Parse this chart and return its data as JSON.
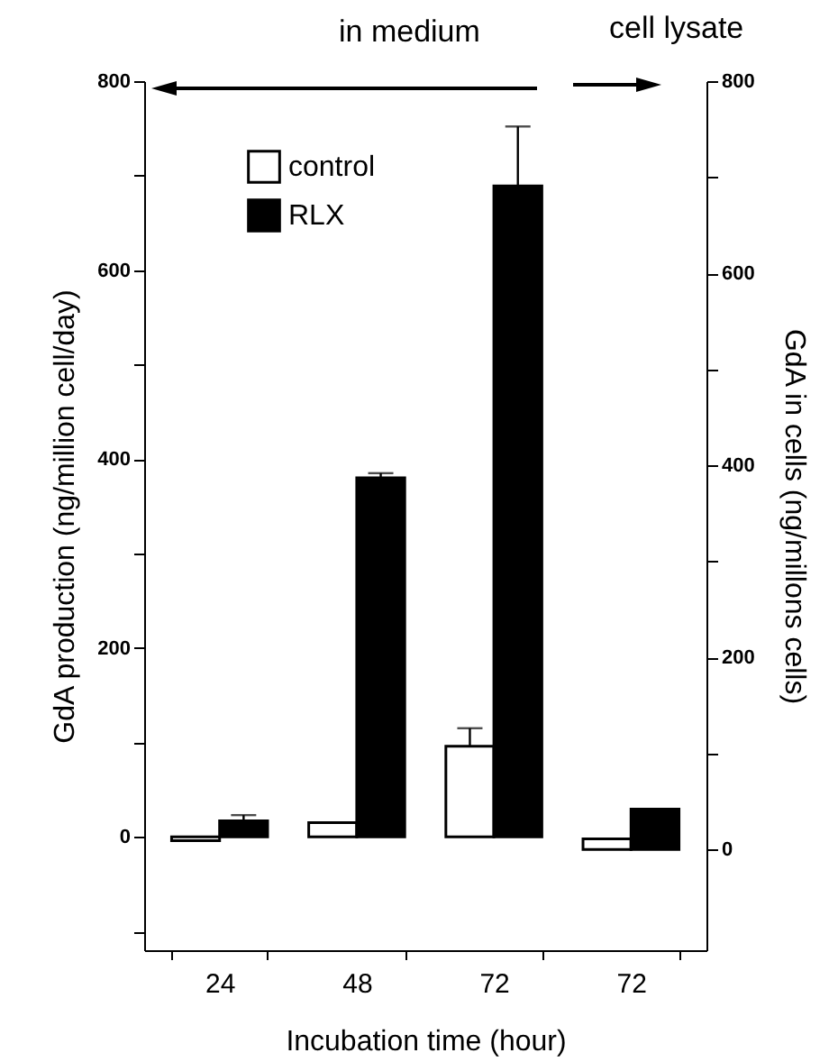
{
  "chart_data": {
    "type": "bar",
    "xlabel": "Incubation time (hour)",
    "ylabel": "GdA production (ng/million cell/day)",
    "y2label": "GdA in cells (ng/millons cells)",
    "annotations": [
      "in medium",
      "cell lysate"
    ],
    "categories": [
      "24",
      "48",
      "72",
      "72"
    ],
    "series": [
      {
        "name": "control",
        "color": "#ffffff",
        "values": [
          -4,
          15,
          96,
          null
        ],
        "errors": [
          null,
          null,
          [
            96,
            115
          ],
          null
        ]
      },
      {
        "name": "RLX",
        "color": "#000000",
        "values": [
          17,
          380,
          689,
          null
        ],
        "errors": [
          [
            17,
            23
          ],
          [
            380,
            385
          ],
          [
            689,
            752
          ],
          null
        ]
      },
      {
        "color": "#ffffff",
        "axis": "y2",
        "values": [
          null,
          null,
          null,
          11
        ]
      },
      {
        "color": "#000000",
        "axis": "y2",
        "values": [
          null,
          null,
          null,
          42
        ]
      }
    ],
    "ylim": [
      -120,
      800
    ],
    "yticks": [
      {
        "value": -100,
        "label": null
      },
      0,
      {
        "value": 100,
        "label": null
      },
      200,
      {
        "value": 300,
        "label": null
      },
      400,
      {
        "value": 500,
        "label": null
      },
      600,
      {
        "value": 700,
        "label": null
      },
      800
    ],
    "y2lim": [
      -105,
      800
    ],
    "y2ticks": [
      0,
      {
        "value": 100,
        "label": null
      },
      200,
      {
        "value": 300,
        "label": null
      },
      400,
      {
        "value": 500,
        "label": null
      },
      600,
      {
        "value": 700,
        "label": null
      },
      800
    ],
    "legend": "top left"
  }
}
